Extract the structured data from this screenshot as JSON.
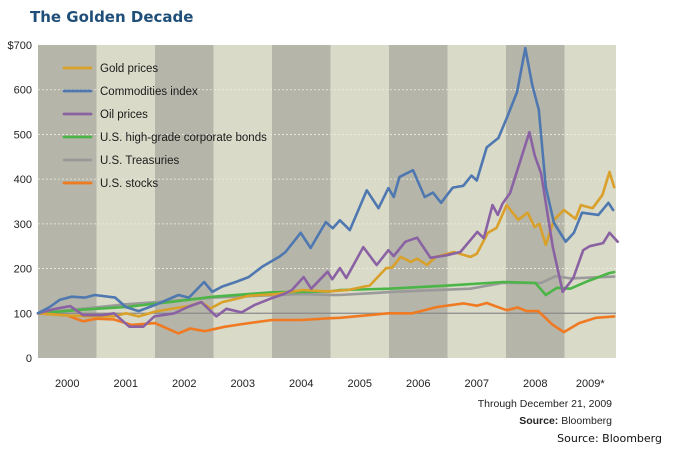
{
  "chart_data": {
    "type": "line",
    "title": "The Golden Decade",
    "ylim": [
      0,
      700
    ],
    "yticks": [
      "$700",
      "600",
      "500",
      "400",
      "300",
      "200",
      "100",
      "0"
    ],
    "ytick_values": [
      700,
      600,
      500,
      400,
      300,
      200,
      100,
      0
    ],
    "xlim": [
      2000,
      2009.97
    ],
    "xticks": [
      "2000",
      "2001",
      "2002",
      "2003",
      "2004",
      "2005",
      "2006",
      "2007",
      "2008",
      "2009*"
    ],
    "grid": true,
    "reference_line": 100,
    "legend_placement": "top-left",
    "band_colors": {
      "dark": "#b5b5a9",
      "light": "#d9dac8"
    },
    "series": [
      {
        "name": "Gold prices",
        "color": "#d9a02a",
        "points": [
          [
            2000,
            100
          ],
          [
            2000.5,
            95
          ],
          [
            2001,
            93
          ],
          [
            2001.3,
            93
          ],
          [
            2001.5,
            100
          ],
          [
            2001.72,
            93
          ],
          [
            2002.01,
            104
          ],
          [
            2002.33,
            111
          ],
          [
            2002.58,
            116
          ],
          [
            2002.79,
            125
          ],
          [
            2002.95,
            111
          ],
          [
            2003.15,
            125
          ],
          [
            2003.38,
            132
          ],
          [
            2003.6,
            139
          ],
          [
            2004.07,
            143
          ],
          [
            2004.52,
            152
          ],
          [
            2004.95,
            149
          ],
          [
            2005.3,
            152
          ],
          [
            2005.55,
            159
          ],
          [
            2005.67,
            162
          ],
          [
            2005.95,
            201
          ],
          [
            2006.05,
            202
          ],
          [
            2006.2,
            226
          ],
          [
            2006.37,
            215
          ],
          [
            2006.48,
            222
          ],
          [
            2006.65,
            208
          ],
          [
            2006.8,
            226
          ],
          [
            2007.11,
            237
          ],
          [
            2007.39,
            226
          ],
          [
            2007.5,
            233
          ],
          [
            2007.69,
            280
          ],
          [
            2007.84,
            291
          ],
          [
            2008.01,
            342
          ],
          [
            2008.21,
            309
          ],
          [
            2008.37,
            325
          ],
          [
            2008.49,
            293
          ],
          [
            2008.57,
            300
          ],
          [
            2008.68,
            253
          ],
          [
            2008.82,
            309
          ],
          [
            2008.99,
            331
          ],
          [
            2009.19,
            311
          ],
          [
            2009.28,
            342
          ],
          [
            2009.48,
            335
          ],
          [
            2009.65,
            365
          ],
          [
            2009.77,
            416
          ],
          [
            2009.85,
            382
          ]
        ]
      },
      {
        "name": "Commodities index",
        "color": "#4f78b0",
        "points": [
          [
            2000,
            100
          ],
          [
            2000.2,
            114
          ],
          [
            2000.37,
            130
          ],
          [
            2000.57,
            137
          ],
          [
            2000.8,
            135
          ],
          [
            2000.97,
            141
          ],
          [
            2001.32,
            135
          ],
          [
            2001.5,
            114
          ],
          [
            2001.72,
            105
          ],
          [
            2002.01,
            119
          ],
          [
            2002.4,
            141
          ],
          [
            2002.58,
            135
          ],
          [
            2002.84,
            170
          ],
          [
            2002.98,
            148
          ],
          [
            2003.15,
            160
          ],
          [
            2003.38,
            170
          ],
          [
            2003.6,
            181
          ],
          [
            2003.83,
            204
          ],
          [
            2004.12,
            226
          ],
          [
            2004.23,
            237
          ],
          [
            2004.49,
            280
          ],
          [
            2004.66,
            246
          ],
          [
            2004.92,
            304
          ],
          [
            2005.04,
            290
          ],
          [
            2005.16,
            308
          ],
          [
            2005.33,
            286
          ],
          [
            2005.62,
            375
          ],
          [
            2005.82,
            335
          ],
          [
            2005.99,
            380
          ],
          [
            2006.08,
            360
          ],
          [
            2006.18,
            405
          ],
          [
            2006.41,
            420
          ],
          [
            2006.61,
            360
          ],
          [
            2006.75,
            370
          ],
          [
            2006.89,
            347
          ],
          [
            2007.09,
            381
          ],
          [
            2007.27,
            385
          ],
          [
            2007.41,
            408
          ],
          [
            2007.5,
            397
          ],
          [
            2007.67,
            471
          ],
          [
            2007.87,
            492
          ],
          [
            2008.02,
            539
          ],
          [
            2008.19,
            595
          ],
          [
            2008.33,
            693
          ],
          [
            2008.45,
            610
          ],
          [
            2008.56,
            555
          ],
          [
            2008.68,
            382
          ],
          [
            2008.82,
            302
          ],
          [
            2009.02,
            260
          ],
          [
            2009.16,
            280
          ],
          [
            2009.3,
            325
          ],
          [
            2009.58,
            320
          ],
          [
            2009.75,
            347
          ],
          [
            2009.83,
            331
          ]
        ]
      },
      {
        "name": "Oil prices",
        "color": "#8a62a3",
        "points": [
          [
            2000,
            100
          ],
          [
            2000.3,
            110
          ],
          [
            2000.55,
            116
          ],
          [
            2000.77,
            96
          ],
          [
            2001.1,
            96
          ],
          [
            2001.3,
            100
          ],
          [
            2001.56,
            70
          ],
          [
            2001.8,
            70
          ],
          [
            2001.99,
            93
          ],
          [
            2002.33,
            100
          ],
          [
            2002.56,
            114
          ],
          [
            2002.79,
            125
          ],
          [
            2003.05,
            93
          ],
          [
            2003.22,
            110
          ],
          [
            2003.48,
            102
          ],
          [
            2003.71,
            119
          ],
          [
            2004.0,
            134
          ],
          [
            2004.22,
            144
          ],
          [
            2004.34,
            152
          ],
          [
            2004.54,
            181
          ],
          [
            2004.67,
            155
          ],
          [
            2004.95,
            193
          ],
          [
            2005.03,
            176
          ],
          [
            2005.16,
            201
          ],
          [
            2005.27,
            179
          ],
          [
            2005.56,
            248
          ],
          [
            2005.79,
            208
          ],
          [
            2005.99,
            241
          ],
          [
            2006.08,
            228
          ],
          [
            2006.28,
            260
          ],
          [
            2006.48,
            269
          ],
          [
            2006.71,
            224
          ],
          [
            2006.99,
            230
          ],
          [
            2007.22,
            237
          ],
          [
            2007.51,
            282
          ],
          [
            2007.62,
            268
          ],
          [
            2007.77,
            342
          ],
          [
            2007.86,
            320
          ],
          [
            2007.94,
            345
          ],
          [
            2008.07,
            369
          ],
          [
            2008.4,
            505
          ],
          [
            2008.49,
            453
          ],
          [
            2008.6,
            413
          ],
          [
            2008.8,
            248
          ],
          [
            2008.97,
            148
          ],
          [
            2009.15,
            179
          ],
          [
            2009.32,
            241
          ],
          [
            2009.43,
            250
          ],
          [
            2009.66,
            257
          ],
          [
            2009.77,
            280
          ],
          [
            2009.91,
            260
          ]
        ]
      },
      {
        "name": "U.S. high-grade corporate bonds",
        "color": "#4cb548",
        "points": [
          [
            2000,
            100
          ],
          [
            2000.75,
            108
          ],
          [
            2001.5,
            114
          ],
          [
            2002.25,
            125
          ],
          [
            2003,
            137
          ],
          [
            2004,
            147
          ],
          [
            2005,
            149
          ],
          [
            2005.16,
            152
          ],
          [
            2006,
            155
          ],
          [
            2007,
            162
          ],
          [
            2007.95,
            170
          ],
          [
            2008.5,
            168
          ],
          [
            2008.68,
            141
          ],
          [
            2008.87,
            157
          ],
          [
            2009.1,
            155
          ],
          [
            2009.4,
            172
          ],
          [
            2009.77,
            190
          ],
          [
            2009.85,
            192
          ]
        ]
      },
      {
        "name": "U.S. Treasuries",
        "color": "#9a9a9a",
        "points": [
          [
            2000,
            100
          ],
          [
            2000.75,
            110
          ],
          [
            2001.5,
            120
          ],
          [
            2002.25,
            127
          ],
          [
            2003,
            135
          ],
          [
            2004.5,
            143
          ],
          [
            2005,
            141
          ],
          [
            2005.16,
            141
          ],
          [
            2006.1,
            148
          ],
          [
            2007.39,
            155
          ],
          [
            2007.95,
            168
          ],
          [
            2008.6,
            168
          ],
          [
            2008.85,
            183
          ],
          [
            2009.1,
            178
          ],
          [
            2009.85,
            182
          ]
        ]
      },
      {
        "name": "U.S. stocks",
        "color": "#f07a22",
        "points": [
          [
            2000,
            100
          ],
          [
            2000.5,
            95
          ],
          [
            2000.77,
            82
          ],
          [
            2001,
            88
          ],
          [
            2001.3,
            86
          ],
          [
            2001.6,
            74
          ],
          [
            2002.0,
            78
          ],
          [
            2002.4,
            55
          ],
          [
            2002.6,
            66
          ],
          [
            2002.85,
            60
          ],
          [
            2003.2,
            70
          ],
          [
            2003.5,
            76
          ],
          [
            2004.0,
            85
          ],
          [
            2004.5,
            85
          ],
          [
            2005.0,
            89
          ],
          [
            2005.16,
            90
          ],
          [
            2005.99,
            100
          ],
          [
            2006.4,
            100
          ],
          [
            2006.82,
            114
          ],
          [
            2007.27,
            122
          ],
          [
            2007.5,
            117
          ],
          [
            2007.67,
            123
          ],
          [
            2008.01,
            107
          ],
          [
            2008.2,
            113
          ],
          [
            2008.35,
            105
          ],
          [
            2008.55,
            105
          ],
          [
            2008.8,
            74
          ],
          [
            2008.99,
            58
          ],
          [
            2009.25,
            78
          ],
          [
            2009.54,
            90
          ],
          [
            2009.85,
            93
          ]
        ]
      }
    ]
  },
  "notes": {
    "through": "Through December 21, 2009",
    "source_label": "Source:",
    "source_value": " Bloomberg",
    "source_plain": "Source: Bloomberg"
  }
}
